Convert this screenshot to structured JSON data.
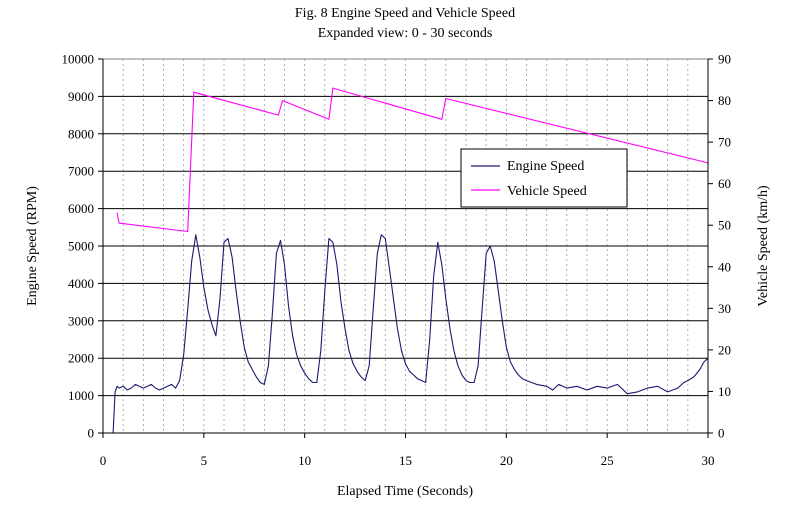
{
  "chart_data": {
    "type": "line",
    "title": "Fig. 8  Engine Speed and Vehicle Speed",
    "subtitle": "Expanded view: 0 - 30 seconds",
    "xlabel": "Elapsed Time (Seconds)",
    "ylabel_left": "Engine Speed (RPM)",
    "ylabel_right": "Vehicle Speed (km/h)",
    "xlim": [
      0,
      30
    ],
    "ylim_left": [
      0,
      10000
    ],
    "ylim_right": [
      0,
      90
    ],
    "x_ticks": [
      "0",
      "5",
      "10",
      "15",
      "20",
      "25",
      "30"
    ],
    "y_ticks_left": [
      "0",
      "1000",
      "2000",
      "3000",
      "4000",
      "5000",
      "6000",
      "7000",
      "8000",
      "9000",
      "10000"
    ],
    "y_ticks_right": [
      "0",
      "10",
      "20",
      "30",
      "40",
      "50",
      "60",
      "70",
      "80",
      "90"
    ],
    "grid": true,
    "legend_position": "right-center",
    "colors": {
      "engine": "#1a1a6e",
      "vehicle": "#ff00ff"
    },
    "series": [
      {
        "name": "Engine Speed",
        "axis": "left",
        "x": [
          0.4,
          0.5,
          0.6,
          0.7,
          0.8,
          1.0,
          1.2,
          1.4,
          1.6,
          1.8,
          2.0,
          2.2,
          2.4,
          2.6,
          2.8,
          3.0,
          3.2,
          3.4,
          3.6,
          3.8,
          4.0,
          4.2,
          4.4,
          4.6,
          4.8,
          5.0,
          5.2,
          5.4,
          5.6,
          5.8,
          6.0,
          6.2,
          6.4,
          6.6,
          6.8,
          7.0,
          7.2,
          7.4,
          7.6,
          7.8,
          8.0,
          8.2,
          8.4,
          8.6,
          8.8,
          9.0,
          9.2,
          9.4,
          9.6,
          9.8,
          10.0,
          10.2,
          10.4,
          10.6,
          10.8,
          11.0,
          11.2,
          11.4,
          11.6,
          11.8,
          12.0,
          12.2,
          12.4,
          12.6,
          12.8,
          13.0,
          13.2,
          13.4,
          13.6,
          13.8,
          14.0,
          14.2,
          14.4,
          14.6,
          14.8,
          15.0,
          15.2,
          15.4,
          15.6,
          15.8,
          16.0,
          16.2,
          16.4,
          16.6,
          16.8,
          17.0,
          17.2,
          17.4,
          17.6,
          17.8,
          18.0,
          18.2,
          18.4,
          18.6,
          18.8,
          19.0,
          19.2,
          19.4,
          19.6,
          19.8,
          20.0,
          20.2,
          20.4,
          20.6,
          20.8,
          21.0,
          21.5,
          22.0,
          22.3,
          22.6,
          23.0,
          23.5,
          24.0,
          24.5,
          25.0,
          25.5,
          26.0,
          26.5,
          27.0,
          27.5,
          28.0,
          28.5,
          28.8,
          29.0,
          29.3,
          29.6,
          29.8,
          30.0
        ],
        "values": [
          0,
          0,
          1100,
          1250,
          1200,
          1250,
          1150,
          1200,
          1300,
          1250,
          1200,
          1250,
          1300,
          1200,
          1150,
          1200,
          1250,
          1300,
          1200,
          1400,
          2100,
          3300,
          4600,
          5300,
          4700,
          3900,
          3300,
          2900,
          2600,
          3600,
          5100,
          5200,
          4700,
          3800,
          3000,
          2300,
          1900,
          1700,
          1500,
          1350,
          1300,
          1800,
          3200,
          4800,
          5150,
          4500,
          3400,
          2600,
          2100,
          1800,
          1600,
          1450,
          1350,
          1350,
          2200,
          3800,
          5200,
          5100,
          4500,
          3500,
          2800,
          2200,
          1850,
          1650,
          1500,
          1400,
          1800,
          3300,
          4800,
          5300,
          5200,
          4400,
          3600,
          2800,
          2200,
          1850,
          1650,
          1550,
          1450,
          1400,
          1350,
          2500,
          4200,
          5100,
          4500,
          3600,
          2800,
          2200,
          1800,
          1550,
          1400,
          1350,
          1350,
          1800,
          3300,
          4800,
          5000,
          4600,
          3800,
          3000,
          2300,
          1900,
          1700,
          1550,
          1450,
          1400,
          1300,
          1250,
          1150,
          1300,
          1200,
          1250,
          1150,
          1250,
          1200,
          1300,
          1050,
          1100,
          1200,
          1250,
          1100,
          1200,
          1350,
          1400,
          1500,
          1700,
          1900,
          2000
        ]
      },
      {
        "name": "Vehicle Speed",
        "axis": "right",
        "x": [
          0.7,
          0.8,
          4.2,
          4.5,
          8.7,
          8.9,
          11.2,
          11.4,
          16.8,
          17.0,
          30.0
        ],
        "values": [
          53,
          50.5,
          48.5,
          82,
          76.5,
          80,
          75.5,
          83,
          75.5,
          80.5,
          65
        ]
      }
    ]
  }
}
